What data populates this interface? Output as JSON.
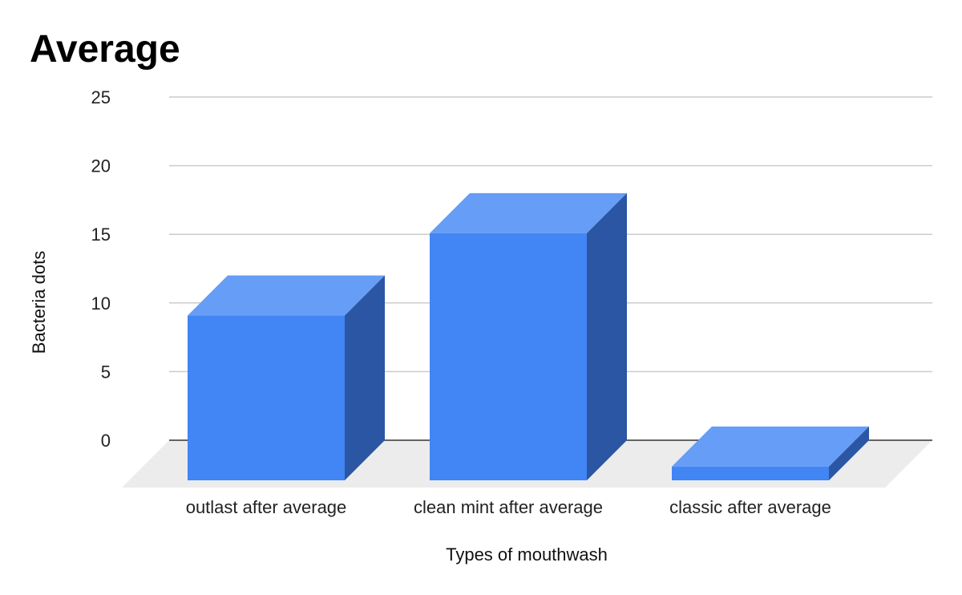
{
  "chart_data": {
    "type": "bar",
    "title": "Average",
    "xlabel": "Types of mouthwash",
    "ylabel": "Bacteria dots",
    "categories": [
      "outlast after average",
      "clean mint after average",
      "classic after average"
    ],
    "values": [
      12,
      18,
      1
    ],
    "ylim": [
      0,
      25
    ],
    "yticks": [
      0,
      5,
      10,
      15,
      20,
      25
    ],
    "grid": true,
    "style": "3d",
    "colors": {
      "front": "#4285f4",
      "top": "#669df6",
      "side": "#2a56a3",
      "floor": "#ececec",
      "grid": "#cccccc",
      "baseline": "#333333"
    }
  }
}
